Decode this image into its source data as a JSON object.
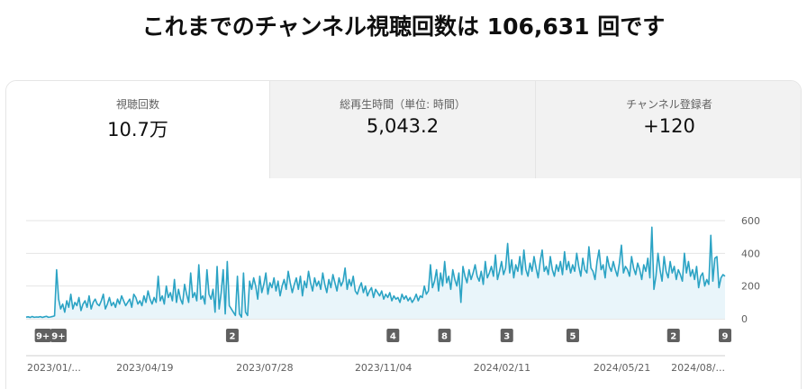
{
  "headline": "これまでのチャンネル視聴回数は 106,631 回です",
  "tabs": [
    {
      "label": "視聴回数",
      "value": "10.7万",
      "selected": true
    },
    {
      "label": "総再生時間（単位: 時間）",
      "value": "5,043.2",
      "selected": false
    },
    {
      "label": "チャンネル登録者",
      "value": "+120",
      "selected": false
    }
  ],
  "colors": {
    "line": "#2ba3c4",
    "fill": "#e9f5fa",
    "grid": "#e5e5e5",
    "badge": "#606060"
  },
  "chart_data": {
    "type": "area",
    "x_start": "2023/01/...",
    "x_end": "2024/08/...",
    "xtick_labels": [
      "2023/01/...",
      "2023/04/19",
      "2023/07/28",
      "2023/11/04",
      "2024/02/11",
      "2024/05/21",
      "2024/08/..."
    ],
    "xtick_dates": [
      "2023-01-10",
      "2023-04-19",
      "2023-07-28",
      "2023-11-04",
      "2024-02-11",
      "2024-05-21",
      "2024-08-15"
    ],
    "yticks": [
      0,
      200,
      400,
      600
    ],
    "ylim": [
      0,
      600
    ],
    "grid": true,
    "series": [
      {
        "values": [
          10,
          12,
          8,
          14,
          9,
          11,
          10,
          13,
          8,
          12,
          15,
          9,
          11,
          14,
          18,
          300,
          120,
          60,
          90,
          40,
          110,
          70,
          150,
          60,
          100,
          80,
          130,
          50,
          90,
          110,
          70,
          140,
          60,
          100,
          120,
          90,
          80,
          110,
          150,
          60,
          90,
          130,
          80,
          100,
          70,
          120,
          90,
          140,
          110,
          80,
          100,
          120,
          70,
          150,
          130,
          90,
          110,
          80,
          140,
          100,
          170,
          120,
          90,
          130,
          100,
          260,
          110,
          140,
          90,
          200,
          130,
          160,
          110,
          240,
          100,
          180,
          120,
          90,
          210,
          150,
          100,
          280,
          130,
          160,
          110,
          330,
          120,
          140,
          90,
          300,
          150,
          120,
          180,
          40,
          320,
          60,
          160,
          300,
          30,
          350,
          80,
          60,
          40,
          20,
          260,
          30,
          10,
          280,
          40,
          20,
          230,
          180,
          250,
          200,
          120,
          260,
          160,
          210,
          280,
          150,
          220,
          190,
          250,
          170,
          230,
          140,
          200,
          240,
          180,
          290,
          220,
          160,
          210,
          250,
          180,
          260,
          140,
          230,
          190,
          290,
          220,
          170,
          250,
          200,
          230,
          180,
          280,
          210,
          160,
          240,
          190,
          270,
          220,
          170,
          250,
          200,
          230,
          310,
          180,
          240,
          200,
          260,
          170,
          150,
          190,
          220,
          160,
          200,
          140,
          170,
          190,
          130,
          180,
          160,
          140,
          170,
          120,
          150,
          130,
          160,
          110,
          140,
          120,
          130,
          100,
          150,
          120,
          140,
          110,
          130,
          100,
          120,
          150,
          110,
          140,
          130,
          200,
          150,
          170,
          330,
          190,
          230,
          300,
          170,
          280,
          200,
          350,
          220,
          260,
          180,
          300,
          240,
          200,
          280,
          100,
          320,
          260,
          220,
          300,
          240,
          280,
          330,
          260,
          230,
          290,
          210,
          350,
          250,
          280,
          320,
          260,
          390,
          240,
          290,
          350,
          270,
          310,
          460,
          280,
          360,
          250,
          330,
          290,
          380,
          270,
          420,
          300,
          260,
          340,
          290,
          380,
          310,
          250,
          350,
          420,
          290,
          320,
          270,
          380,
          300,
          260,
          330,
          290,
          350,
          270,
          410,
          300,
          350,
          280,
          330,
          290,
          400,
          320,
          260,
          370,
          300,
          280,
          440,
          310,
          290,
          240,
          350,
          420,
          300,
          330,
          250,
          380,
          320,
          290,
          350,
          300,
          260,
          340,
          450,
          280,
          320,
          300,
          260,
          380,
          310,
          270,
          340,
          300,
          240,
          330,
          290,
          370,
          250,
          560,
          180,
          260,
          400,
          300,
          230,
          380,
          290,
          250,
          350,
          280,
          320,
          240,
          300,
          270,
          230,
          400,
          280,
          350,
          260,
          300,
          240,
          320,
          190,
          260,
          280,
          200,
          240,
          210,
          510,
          230,
          370,
          380,
          190,
          250,
          270,
          260
        ]
      }
    ],
    "badges": [
      {
        "label": "9+",
        "date": "2023-01-24"
      },
      {
        "label": "9+",
        "date": "2023-02-06"
      },
      {
        "label": "2",
        "date": "2023-07-01"
      },
      {
        "label": "4",
        "date": "2023-11-12"
      },
      {
        "label": "8",
        "date": "2023-12-25"
      },
      {
        "label": "3",
        "date": "2024-02-15"
      },
      {
        "label": "5",
        "date": "2024-04-10"
      },
      {
        "label": "2",
        "date": "2024-07-03"
      },
      {
        "label": "9",
        "date": "2024-08-15"
      }
    ]
  }
}
